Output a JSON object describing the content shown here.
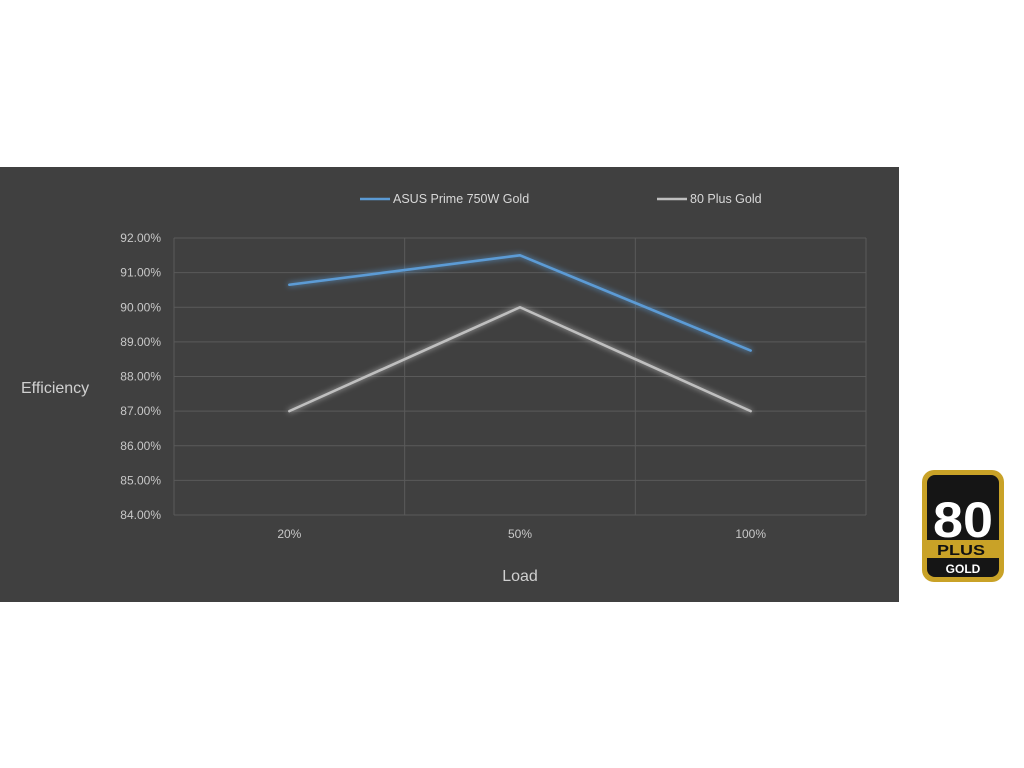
{
  "chart_data": {
    "type": "line",
    "categories": [
      "20%",
      "50%",
      "100%"
    ],
    "series": [
      {
        "name": "ASUS Prime 750W Gold",
        "values": [
          90.65,
          91.5,
          88.75
        ],
        "color": "#5b9bd5"
      },
      {
        "name": "80 Plus Gold",
        "values": [
          87.0,
          90.0,
          87.0
        ],
        "color": "#bfbfbf"
      }
    ],
    "xlabel": "Load",
    "ylabel": "Efficiency",
    "ylim": [
      84,
      92
    ],
    "yticks": [
      "84.00%",
      "85.00%",
      "86.00%",
      "87.00%",
      "88.00%",
      "89.00%",
      "90.00%",
      "91.00%",
      "92.00%"
    ],
    "grid": true,
    "legend_position": "top"
  },
  "badge": {
    "number": "80",
    "plus": "PLUS",
    "tier": "GOLD",
    "color": "#c9a227"
  },
  "colors": {
    "panel_background": "#404040",
    "gridline": "#5a5a5a"
  }
}
